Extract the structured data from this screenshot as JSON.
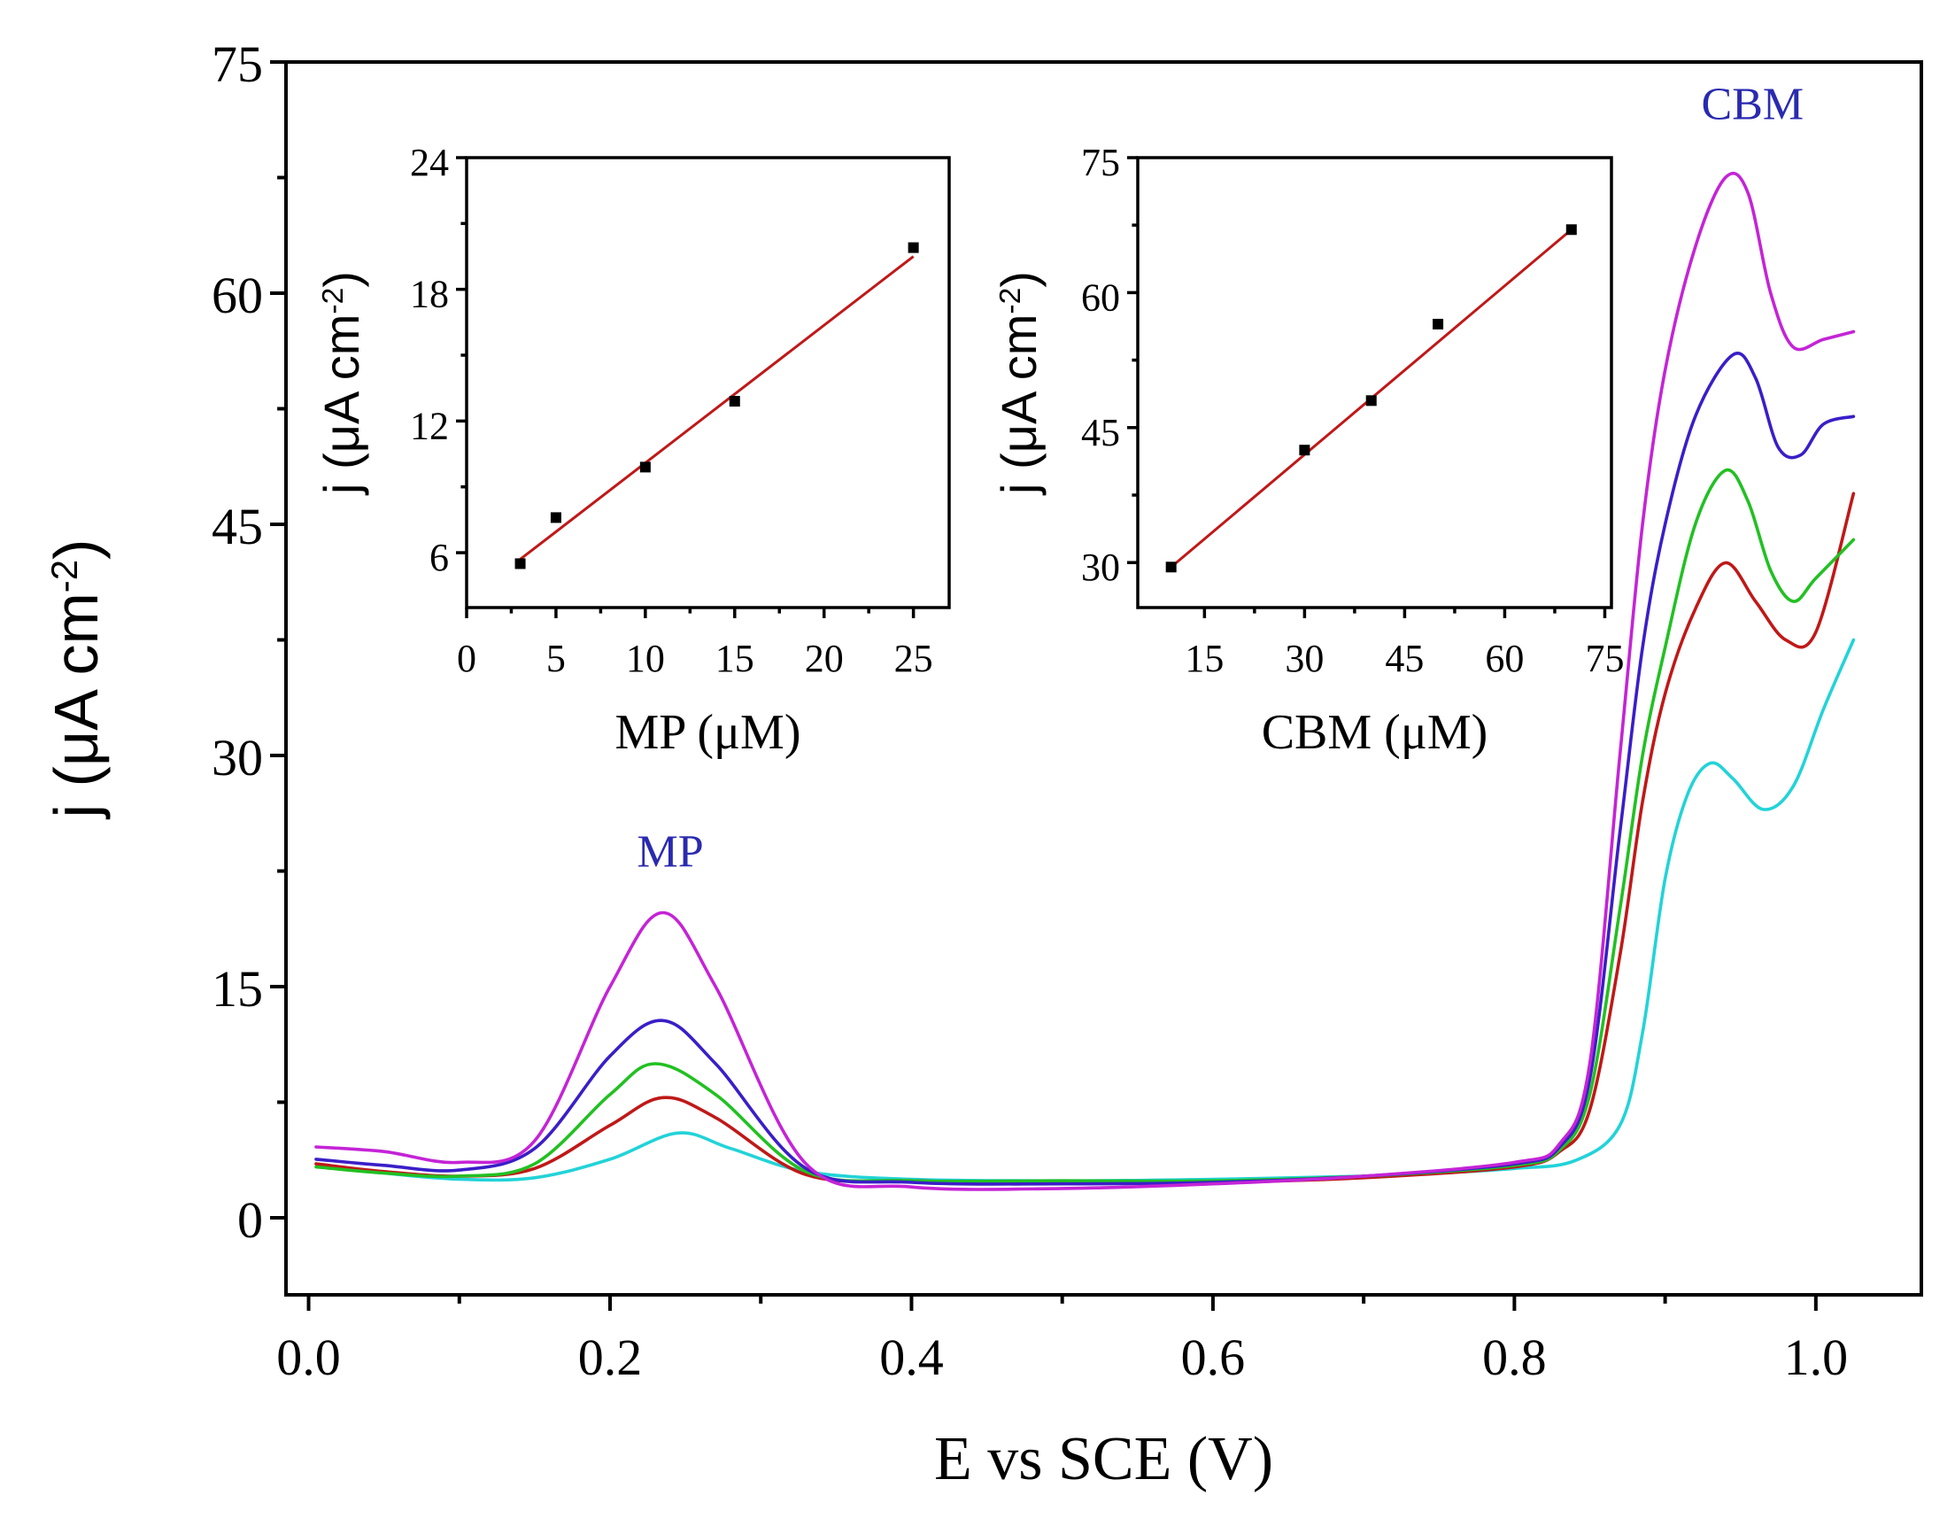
{
  "colors": {
    "cyan": "#22d3d8",
    "red": "#c01818",
    "green": "#22c022",
    "purple": "#3a1ec8",
    "magenta": "#c424d6",
    "annotation": "#2a2ab0",
    "fit": "#c01818",
    "marker": "#000000"
  },
  "chart_data": [
    {
      "id": "main",
      "type": "line",
      "xlabel": "E vs SCE (V)",
      "ylabel_text": "j (μA cm",
      "ylabel_sup": "-2",
      "ylabel_close": ")",
      "xlim": [
        -0.015,
        1.07
      ],
      "ylim": [
        -5,
        75
      ],
      "xticks": [
        0.0,
        0.2,
        0.4,
        0.6,
        0.8,
        1.0
      ],
      "xtick_labels": [
        "0.0",
        "0.2",
        "0.4",
        "0.6",
        "0.8",
        "1.0"
      ],
      "yticks": [
        0,
        15,
        30,
        45,
        60,
        75
      ],
      "ytick_labels": [
        "0",
        "15",
        "30",
        "45",
        "60",
        "75"
      ],
      "annotations": [
        {
          "text": "MP",
          "x": 0.24,
          "y": 22.8
        },
        {
          "text": "CBM",
          "x": 0.958,
          "y": 71.3
        }
      ],
      "series": [
        {
          "name": "curve-1",
          "color": "cyan",
          "points": [
            [
              0.005,
              3.5
            ],
            [
              0.05,
              2.9
            ],
            [
              0.1,
              2.5
            ],
            [
              0.15,
              2.6
            ],
            [
              0.2,
              3.8
            ],
            [
              0.245,
              5.5
            ],
            [
              0.28,
              4.5
            ],
            [
              0.33,
              3.0
            ],
            [
              0.4,
              2.5
            ],
            [
              0.5,
              2.4
            ],
            [
              0.6,
              2.5
            ],
            [
              0.7,
              2.7
            ],
            [
              0.75,
              2.9
            ],
            [
              0.8,
              3.2
            ],
            [
              0.84,
              3.7
            ],
            [
              0.87,
              6.0
            ],
            [
              0.885,
              12.0
            ],
            [
              0.9,
              22.0
            ],
            [
              0.915,
              27.5
            ],
            [
              0.93,
              29.5
            ],
            [
              0.945,
              28.5
            ],
            [
              0.965,
              26.5
            ],
            [
              0.985,
              28.0
            ],
            [
              1.005,
              33.0
            ],
            [
              1.025,
              37.5
            ]
          ]
        },
        {
          "name": "curve-2",
          "color": "red",
          "points": [
            [
              0.005,
              3.5
            ],
            [
              0.05,
              3.0
            ],
            [
              0.1,
              2.7
            ],
            [
              0.15,
              3.2
            ],
            [
              0.2,
              6.0
            ],
            [
              0.235,
              7.8
            ],
            [
              0.27,
              6.5
            ],
            [
              0.33,
              2.8
            ],
            [
              0.4,
              2.4
            ],
            [
              0.5,
              2.3
            ],
            [
              0.6,
              2.3
            ],
            [
              0.7,
              2.6
            ],
            [
              0.8,
              3.3
            ],
            [
              0.83,
              4.3
            ],
            [
              0.85,
              7.0
            ],
            [
              0.87,
              17.0
            ],
            [
              0.885,
              27.0
            ],
            [
              0.9,
              34.0
            ],
            [
              0.92,
              39.5
            ],
            [
              0.94,
              42.5
            ],
            [
              0.96,
              40.0
            ],
            [
              0.98,
              37.5
            ],
            [
              1.0,
              38.0
            ],
            [
              1.025,
              47.0
            ]
          ]
        },
        {
          "name": "curve-3",
          "color": "green",
          "points": [
            [
              0.005,
              3.3
            ],
            [
              0.05,
              2.9
            ],
            [
              0.1,
              2.7
            ],
            [
              0.15,
              3.5
            ],
            [
              0.2,
              8.0
            ],
            [
              0.23,
              10.0
            ],
            [
              0.27,
              8.0
            ],
            [
              0.33,
              3.0
            ],
            [
              0.4,
              2.4
            ],
            [
              0.5,
              2.4
            ],
            [
              0.6,
              2.4
            ],
            [
              0.7,
              2.7
            ],
            [
              0.8,
              3.4
            ],
            [
              0.83,
              4.4
            ],
            [
              0.85,
              8.0
            ],
            [
              0.87,
              20.0
            ],
            [
              0.885,
              30.0
            ],
            [
              0.9,
              37.0
            ],
            [
              0.92,
              45.0
            ],
            [
              0.94,
              48.5
            ],
            [
              0.955,
              46.5
            ],
            [
              0.97,
              42.0
            ],
            [
              0.985,
              40.0
            ],
            [
              1.0,
              41.5
            ],
            [
              1.025,
              44.0
            ]
          ]
        },
        {
          "name": "curve-4",
          "color": "purple",
          "points": [
            [
              0.005,
              3.8
            ],
            [
              0.05,
              3.4
            ],
            [
              0.1,
              3.1
            ],
            [
              0.15,
              4.5
            ],
            [
              0.2,
              10.5
            ],
            [
              0.235,
              12.8
            ],
            [
              0.27,
              10.0
            ],
            [
              0.33,
              3.2
            ],
            [
              0.4,
              2.3
            ],
            [
              0.5,
              2.2
            ],
            [
              0.6,
              2.3
            ],
            [
              0.7,
              2.7
            ],
            [
              0.8,
              3.5
            ],
            [
              0.83,
              4.6
            ],
            [
              0.85,
              9.0
            ],
            [
              0.87,
              25.0
            ],
            [
              0.885,
              37.0
            ],
            [
              0.9,
              45.0
            ],
            [
              0.92,
              52.0
            ],
            [
              0.945,
              56.0
            ],
            [
              0.96,
              54.5
            ],
            [
              0.975,
              50.0
            ],
            [
              0.99,
              49.5
            ],
            [
              1.005,
              51.5
            ],
            [
              1.025,
              52.0
            ]
          ]
        },
        {
          "name": "curve-5",
          "color": "magenta",
          "points": [
            [
              0.005,
              4.6
            ],
            [
              0.05,
              4.3
            ],
            [
              0.1,
              3.6
            ],
            [
              0.15,
              5.0
            ],
            [
              0.2,
              15.0
            ],
            [
              0.235,
              19.8
            ],
            [
              0.27,
              15.0
            ],
            [
              0.33,
              3.5
            ],
            [
              0.4,
              2.0
            ],
            [
              0.5,
              1.9
            ],
            [
              0.6,
              2.2
            ],
            [
              0.7,
              2.7
            ],
            [
              0.8,
              3.6
            ],
            [
              0.83,
              4.8
            ],
            [
              0.85,
              10.0
            ],
            [
              0.87,
              30.0
            ],
            [
              0.885,
              45.0
            ],
            [
              0.9,
              55.0
            ],
            [
              0.92,
              63.0
            ],
            [
              0.94,
              67.5
            ],
            [
              0.955,
              66.5
            ],
            [
              0.97,
              60.0
            ],
            [
              0.985,
              56.5
            ],
            [
              1.005,
              57.0
            ],
            [
              1.025,
              57.5
            ]
          ]
        }
      ]
    },
    {
      "id": "inset-mp",
      "type": "scatter",
      "xlabel": "MP (μM)",
      "ylabel_text": "j (μA cm",
      "ylabel_sup": "-2",
      "ylabel_close": ")",
      "xlim": [
        0,
        27
      ],
      "ylim": [
        3.5,
        24
      ],
      "xticks": [
        0,
        5,
        10,
        15,
        20,
        25
      ],
      "xtick_labels": [
        "0",
        "5",
        "10",
        "15",
        "20",
        "25"
      ],
      "yticks": [
        6,
        12,
        18,
        24
      ],
      "ytick_labels": [
        "6",
        "12",
        "18",
        "24"
      ],
      "x": [
        3,
        5,
        10,
        15,
        25
      ],
      "y": [
        5.5,
        7.6,
        9.9,
        12.9,
        19.9
      ],
      "fit": {
        "x": [
          3,
          25
        ],
        "y": [
          5.7,
          19.5
        ]
      }
    },
    {
      "id": "inset-cbm",
      "type": "scatter",
      "xlabel": "CBM (μM)",
      "ylabel_text": "j (μA cm",
      "ylabel_sup": "-2",
      "ylabel_close": ")",
      "xlim": [
        5,
        76
      ],
      "ylim": [
        25,
        75
      ],
      "xticks": [
        15,
        30,
        45,
        60,
        75
      ],
      "xtick_labels": [
        "15",
        "30",
        "45",
        "60",
        "75"
      ],
      "yticks": [
        30,
        45,
        60,
        75
      ],
      "ytick_labels": [
        "30",
        "45",
        "60",
        "75"
      ],
      "x": [
        10,
        30,
        40,
        50,
        70
      ],
      "y": [
        29.5,
        42.5,
        48.0,
        56.5,
        67.0
      ],
      "fit": {
        "x": [
          10,
          70
        ],
        "y": [
          29.5,
          67.0
        ]
      }
    }
  ]
}
